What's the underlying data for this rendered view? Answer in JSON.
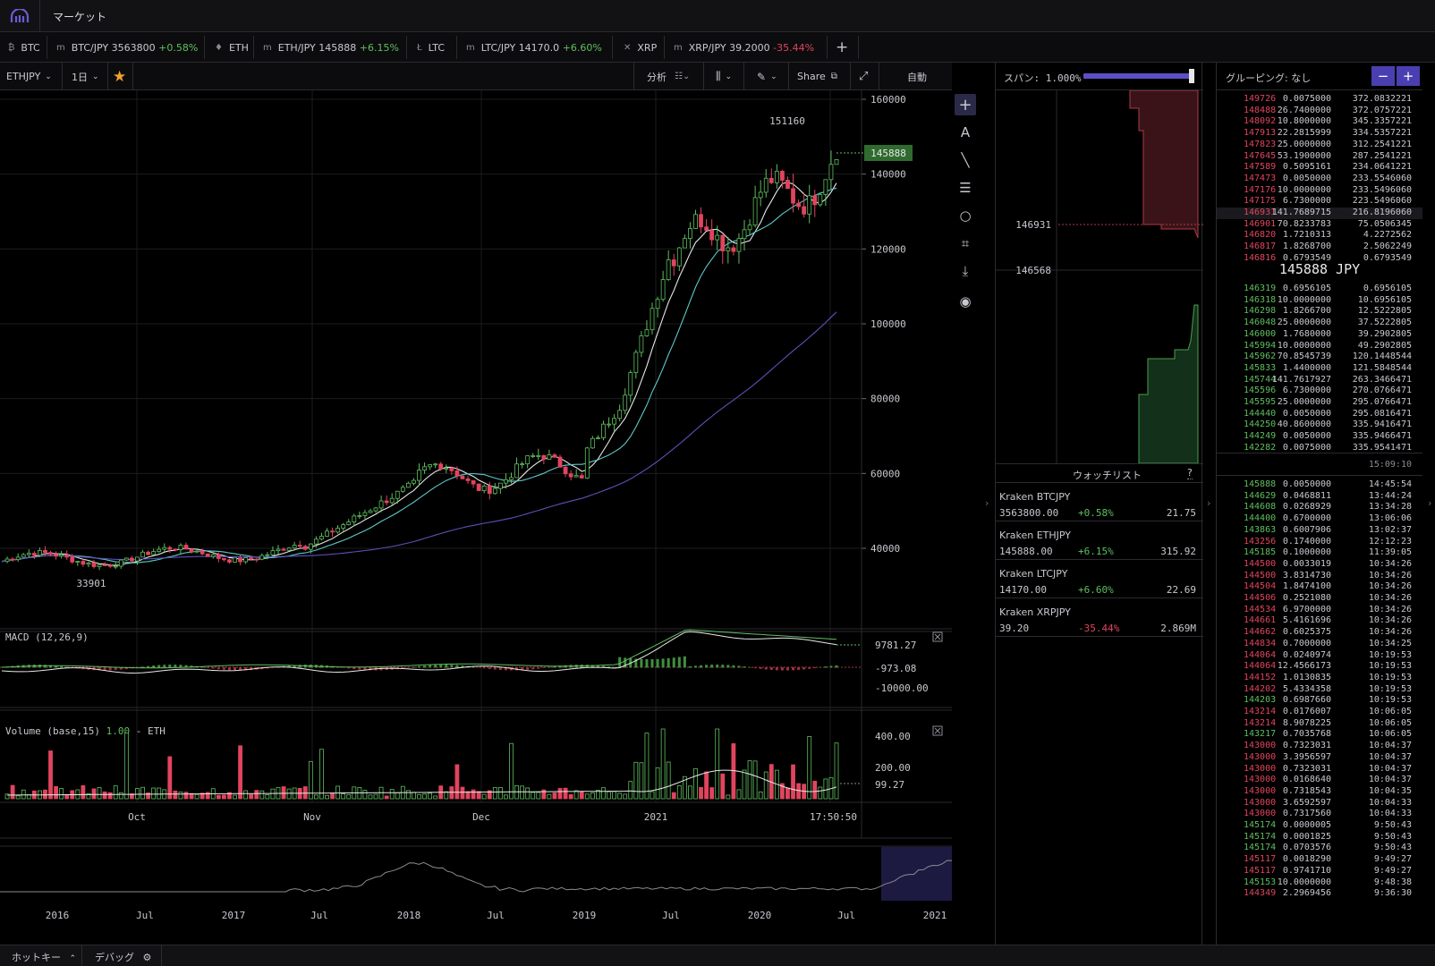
{
  "app": {
    "title": "マーケット"
  },
  "tabs": [
    {
      "icon": "₿",
      "label": "BTC"
    },
    {
      "icon": "m",
      "pair": "BTC/JPY",
      "price": "3563800",
      "change": "+0.58%",
      "dir": "up"
    },
    {
      "icon": "♦",
      "label": "ETH"
    },
    {
      "icon": "m",
      "pair": "ETH/JPY",
      "price": "145888",
      "change": "+6.15%",
      "dir": "up"
    },
    {
      "icon": "Ł",
      "label": "LTC"
    },
    {
      "icon": "m",
      "pair": "LTC/JPY",
      "price": "14170.0",
      "change": "+6.60%",
      "dir": "up"
    },
    {
      "icon": "✕",
      "label": "XRP"
    },
    {
      "icon": "m",
      "pair": "XRP/JPY",
      "price": "39.2000",
      "change": "-35.44%",
      "dir": "down"
    }
  ],
  "add_tab": "+",
  "toolbar": {
    "symbol": "ETHJPY",
    "interval": "1日",
    "star": "★",
    "analysis": "分析",
    "share": "Share",
    "auto": "自動"
  },
  "price_chart": {
    "y_ticks": [
      "160000",
      "140000",
      "120000",
      "100000",
      "80000",
      "60000",
      "40000"
    ],
    "high_label": "151160",
    "low_label": "33901",
    "current_price": "145888",
    "x_ticks": [
      "Oct",
      "Nov",
      "Dec",
      "2021"
    ],
    "time": "17:50:50"
  },
  "macd": {
    "title": "MACD (12,26,9)",
    "ticks": [
      "9781.27",
      "-973.08",
      "-10000.00"
    ]
  },
  "volume": {
    "title": "Volume (base,15)",
    "value": "1.00",
    "unit": "- ETH",
    "ticks": [
      "400.00",
      "200.00",
      "99.27"
    ]
  },
  "navigator": {
    "x_ticks": [
      "2016",
      "Jul",
      "2017",
      "Jul",
      "2018",
      "Jul",
      "2019",
      "Jul",
      "2020",
      "Jul",
      "2021"
    ]
  },
  "depth": {
    "title": "スパン: 1.000%",
    "ask_label": "146931",
    "bid_label": "146568"
  },
  "watchlist": {
    "title": "ウォッチリスト",
    "help": "?",
    "items": [
      {
        "name": "Kraken BTCJPY",
        "price": "3563800.00",
        "change": "+0.58%",
        "dir": "up",
        "vol": "21.75"
      },
      {
        "name": "Kraken ETHJPY",
        "price": "145888.00",
        "change": "+6.15%",
        "dir": "up",
        "vol": "315.92"
      },
      {
        "name": "Kraken LTCJPY",
        "price": "14170.00",
        "change": "+6.60%",
        "dir": "up",
        "vol": "22.69"
      },
      {
        "name": "Kraken XRPJPY",
        "price": "39.20",
        "change": "-35.44%",
        "dir": "down",
        "vol": "2.869M"
      }
    ]
  },
  "orderbook": {
    "grouping": "グルーピング: なし",
    "minus": "−",
    "plus": "+",
    "mid_price": "145888 JPY",
    "asks": [
      [
        "149726",
        "0.0075000",
        "372.0832221"
      ],
      [
        "148488",
        "26.7400000",
        "372.0757221"
      ],
      [
        "148092",
        "10.8000000",
        "345.3357221"
      ],
      [
        "147913",
        "22.2815999",
        "334.5357221"
      ],
      [
        "147823",
        "25.0000000",
        "312.2541221"
      ],
      [
        "147645",
        "53.1900000",
        "287.2541221"
      ],
      [
        "147589",
        "0.5095161",
        "234.0641221"
      ],
      [
        "147473",
        "0.0050000",
        "233.5546060"
      ],
      [
        "147176",
        "10.0000000",
        "233.5496060"
      ],
      [
        "147175",
        "6.7300000",
        "223.5496060"
      ],
      [
        "146931",
        "141.7689715",
        "216.8196060"
      ],
      [
        "146901",
        "70.8233783",
        "75.0506345"
      ],
      [
        "146820",
        "1.7210313",
        "4.2272562"
      ],
      [
        "146817",
        "1.8268700",
        "2.5062249"
      ],
      [
        "146816",
        "0.6793549",
        "0.6793549"
      ]
    ],
    "bids": [
      [
        "146319",
        "0.6956105",
        "0.6956105"
      ],
      [
        "146318",
        "10.0000000",
        "10.6956105"
      ],
      [
        "146298",
        "1.8266700",
        "12.5222805"
      ],
      [
        "146048",
        "25.0000000",
        "37.5222805"
      ],
      [
        "146000",
        "1.7680000",
        "39.2902805"
      ],
      [
        "145994",
        "10.0000000",
        "49.2902805"
      ],
      [
        "145962",
        "70.8545739",
        "120.1448544"
      ],
      [
        "145833",
        "1.4400000",
        "121.5848544"
      ],
      [
        "145744",
        "141.7617927",
        "263.3466471"
      ],
      [
        "145596",
        "6.7300000",
        "270.0766471"
      ],
      [
        "145595",
        "25.0000000",
        "295.0766471"
      ],
      [
        "144440",
        "0.0050000",
        "295.0816471"
      ],
      [
        "144250",
        "40.8600000",
        "335.9416471"
      ],
      [
        "144249",
        "0.0050000",
        "335.9466471"
      ],
      [
        "142282",
        "0.0075000",
        "335.9541471"
      ]
    ],
    "trades_time": "15:09:10",
    "trades": [
      [
        "145888",
        "0.0050000",
        "14:45:54",
        "up"
      ],
      [
        "144629",
        "0.0468811",
        "13:44:24",
        "up"
      ],
      [
        "144608",
        "0.0268929",
        "13:34:28",
        "up"
      ],
      [
        "144400",
        "0.6700000",
        "13:06:06",
        "up"
      ],
      [
        "143863",
        "0.6007906",
        "13:02:37",
        "up"
      ],
      [
        "143256",
        "0.1740000",
        "12:12:23",
        "down"
      ],
      [
        "145185",
        "0.1000000",
        "11:39:05",
        "up"
      ],
      [
        "144500",
        "0.0033019",
        "10:34:26",
        "down"
      ],
      [
        "144500",
        "3.8314730",
        "10:34:26",
        "down"
      ],
      [
        "144504",
        "1.8474100",
        "10:34:26",
        "down"
      ],
      [
        "144506",
        "0.2521080",
        "10:34:26",
        "down"
      ],
      [
        "144534",
        "6.9700000",
        "10:34:26",
        "down"
      ],
      [
        "144661",
        "5.4161696",
        "10:34:26",
        "down"
      ],
      [
        "144662",
        "0.6025375",
        "10:34:26",
        "down"
      ],
      [
        "144834",
        "0.7000000",
        "10:34:25",
        "down"
      ],
      [
        "144064",
        "0.0240974",
        "10:19:53",
        "down"
      ],
      [
        "144064",
        "12.4566173",
        "10:19:53",
        "down"
      ],
      [
        "144152",
        "1.0130835",
        "10:19:53",
        "down"
      ],
      [
        "144202",
        "5.4334358",
        "10:19:53",
        "down"
      ],
      [
        "144203",
        "0.6987660",
        "10:19:53",
        "up"
      ],
      [
        "143214",
        "0.0176007",
        "10:06:05",
        "down"
      ],
      [
        "143214",
        "8.9078225",
        "10:06:05",
        "down"
      ],
      [
        "143217",
        "0.7035768",
        "10:06:05",
        "up"
      ],
      [
        "143000",
        "0.7323031",
        "10:04:37",
        "down"
      ],
      [
        "143000",
        "3.3956597",
        "10:04:37",
        "down"
      ],
      [
        "143000",
        "0.7323031",
        "10:04:37",
        "down"
      ],
      [
        "143000",
        "0.0168640",
        "10:04:37",
        "down"
      ],
      [
        "143000",
        "0.7318543",
        "10:04:35",
        "down"
      ],
      [
        "143000",
        "3.6592597",
        "10:04:33",
        "down"
      ],
      [
        "143000",
        "0.7317560",
        "10:04:33",
        "down"
      ],
      [
        "145174",
        "0.0000005",
        "9:50:43",
        "up"
      ],
      [
        "145174",
        "0.0001825",
        "9:50:43",
        "up"
      ],
      [
        "145174",
        "0.0703576",
        "9:50:43",
        "up"
      ],
      [
        "145117",
        "0.0018290",
        "9:49:27",
        "down"
      ],
      [
        "145117",
        "0.9741710",
        "9:49:27",
        "down"
      ],
      [
        "145153",
        "10.0000000",
        "9:48:38",
        "up"
      ],
      [
        "144349",
        "2.2969456",
        "9:36:30",
        "down"
      ]
    ]
  },
  "bottombar": {
    "hotkey": "ホットキー",
    "debug": "デバッグ"
  },
  "colors": {
    "up": "#5fbf5f",
    "down": "#e0455e",
    "accent": "#5b4fc6",
    "bg": "#000000"
  }
}
